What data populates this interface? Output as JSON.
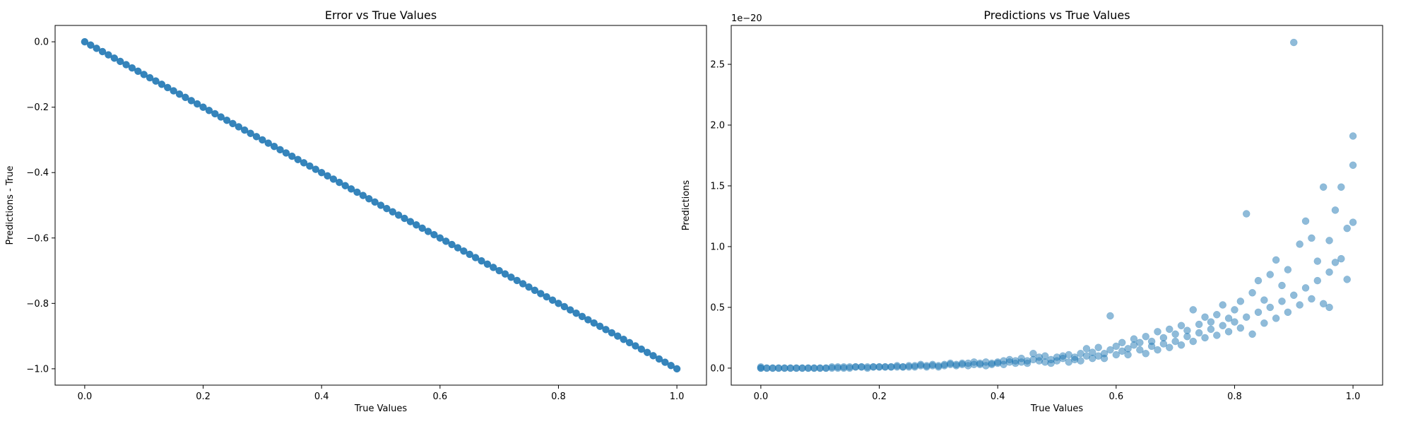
{
  "chart_data": [
    {
      "type": "scatter",
      "title": "Error vs True Values",
      "xlabel": "True Values",
      "ylabel": "Predictions - True",
      "xlim": [
        -0.05,
        1.05
      ],
      "ylim": [
        -1.05,
        0.05
      ],
      "xticks": [
        0.0,
        0.2,
        0.4,
        0.6,
        0.8,
        1.0
      ],
      "xtick_labels": [
        "0.0",
        "0.2",
        "0.4",
        "0.6",
        "0.8",
        "1.0"
      ],
      "yticks": [
        0.0,
        -0.2,
        -0.4,
        -0.6,
        -0.8,
        -1.0
      ],
      "ytick_labels": [
        "0.0",
        "−0.2",
        "−0.4",
        "−0.6",
        "−0.8",
        "−1.0"
      ],
      "color": "#1f77b4",
      "alpha": 0.9,
      "series": [
        {
          "name": "error",
          "rule": "y = -x",
          "x_start": 0.0,
          "x_end": 1.0,
          "count": 101
        }
      ]
    },
    {
      "type": "scatter",
      "title": "Predictions vs True Values",
      "xlabel": "True Values",
      "ylabel": "Predictions",
      "offset_text": "1e−20",
      "xlim": [
        -0.05,
        1.05
      ],
      "ylim": [
        -0.14,
        2.82
      ],
      "xticks": [
        0.0,
        0.2,
        0.4,
        0.6,
        0.8,
        1.0
      ],
      "xtick_labels": [
        "0.0",
        "0.2",
        "0.4",
        "0.6",
        "0.8",
        "1.0"
      ],
      "yticks": [
        0.0,
        0.5,
        1.0,
        1.5,
        2.0,
        2.5
      ],
      "ytick_labels": [
        "0.0",
        "0.5",
        "1.0",
        "1.5",
        "2.0",
        "2.5"
      ],
      "color": "#1f77b4",
      "alpha": 0.5,
      "series": [
        {
          "name": "predictions",
          "points": [
            [
              0.0,
              0.0
            ],
            [
              0.0,
              0.01
            ],
            [
              0.0,
              0.0
            ],
            [
              0.01,
              0.0
            ],
            [
              0.01,
              0.0
            ],
            [
              0.02,
              0.0
            ],
            [
              0.02,
              0.0
            ],
            [
              0.03,
              0.0
            ],
            [
              0.03,
              0.0
            ],
            [
              0.04,
              0.0
            ],
            [
              0.04,
              0.0
            ],
            [
              0.05,
              0.0
            ],
            [
              0.05,
              0.0
            ],
            [
              0.06,
              0.0
            ],
            [
              0.06,
              0.0
            ],
            [
              0.07,
              0.0
            ],
            [
              0.07,
              0.0
            ],
            [
              0.08,
              0.0
            ],
            [
              0.08,
              0.0
            ],
            [
              0.09,
              0.0
            ],
            [
              0.09,
              0.0
            ],
            [
              0.1,
              0.0
            ],
            [
              0.1,
              0.0
            ],
            [
              0.11,
              0.0
            ],
            [
              0.11,
              0.0
            ],
            [
              0.12,
              0.0
            ],
            [
              0.12,
              0.01
            ],
            [
              0.13,
              0.0
            ],
            [
              0.13,
              0.01
            ],
            [
              0.14,
              0.0
            ],
            [
              0.14,
              0.01
            ],
            [
              0.15,
              0.01
            ],
            [
              0.15,
              0.0
            ],
            [
              0.16,
              0.01
            ],
            [
              0.16,
              0.01
            ],
            [
              0.17,
              0.01
            ],
            [
              0.17,
              0.01
            ],
            [
              0.18,
              0.01
            ],
            [
              0.18,
              0.0
            ],
            [
              0.19,
              0.01
            ],
            [
              0.19,
              0.01
            ],
            [
              0.2,
              0.01
            ],
            [
              0.2,
              0.01
            ],
            [
              0.21,
              0.01
            ],
            [
              0.21,
              0.01
            ],
            [
              0.22,
              0.01
            ],
            [
              0.22,
              0.01
            ],
            [
              0.23,
              0.01
            ],
            [
              0.23,
              0.02
            ],
            [
              0.24,
              0.01
            ],
            [
              0.24,
              0.01
            ],
            [
              0.25,
              0.02
            ],
            [
              0.25,
              0.01
            ],
            [
              0.26,
              0.02
            ],
            [
              0.26,
              0.01
            ],
            [
              0.27,
              0.02
            ],
            [
              0.27,
              0.03
            ],
            [
              0.28,
              0.02
            ],
            [
              0.28,
              0.01
            ],
            [
              0.29,
              0.02
            ],
            [
              0.29,
              0.03
            ],
            [
              0.3,
              0.02
            ],
            [
              0.3,
              0.01
            ],
            [
              0.31,
              0.03
            ],
            [
              0.31,
              0.02
            ],
            [
              0.32,
              0.03
            ],
            [
              0.32,
              0.04
            ],
            [
              0.33,
              0.02
            ],
            [
              0.33,
              0.03
            ],
            [
              0.34,
              0.04
            ],
            [
              0.34,
              0.03
            ],
            [
              0.35,
              0.02
            ],
            [
              0.35,
              0.04
            ],
            [
              0.36,
              0.03
            ],
            [
              0.36,
              0.05
            ],
            [
              0.37,
              0.03
            ],
            [
              0.37,
              0.04
            ],
            [
              0.38,
              0.02
            ],
            [
              0.38,
              0.05
            ],
            [
              0.39,
              0.04
            ],
            [
              0.39,
              0.03
            ],
            [
              0.4,
              0.05
            ],
            [
              0.4,
              0.04
            ],
            [
              0.41,
              0.06
            ],
            [
              0.41,
              0.03
            ],
            [
              0.42,
              0.05
            ],
            [
              0.42,
              0.07
            ],
            [
              0.43,
              0.04
            ],
            [
              0.43,
              0.06
            ],
            [
              0.44,
              0.05
            ],
            [
              0.44,
              0.08
            ],
            [
              0.45,
              0.06
            ],
            [
              0.45,
              0.04
            ],
            [
              0.46,
              0.07
            ],
            [
              0.46,
              0.12
            ],
            [
              0.47,
              0.06
            ],
            [
              0.47,
              0.09
            ],
            [
              0.48,
              0.05
            ],
            [
              0.48,
              0.1
            ],
            [
              0.49,
              0.07
            ],
            [
              0.49,
              0.04
            ],
            [
              0.5,
              0.09
            ],
            [
              0.5,
              0.06
            ],
            [
              0.51,
              0.1
            ],
            [
              0.51,
              0.08
            ],
            [
              0.52,
              0.05
            ],
            [
              0.52,
              0.11
            ],
            [
              0.53,
              0.07
            ],
            [
              0.53,
              0.09
            ],
            [
              0.54,
              0.12
            ],
            [
              0.54,
              0.06
            ],
            [
              0.55,
              0.1
            ],
            [
              0.55,
              0.16
            ],
            [
              0.56,
              0.08
            ],
            [
              0.56,
              0.13
            ],
            [
              0.57,
              0.1
            ],
            [
              0.57,
              0.17
            ],
            [
              0.58,
              0.12
            ],
            [
              0.58,
              0.08
            ],
            [
              0.59,
              0.43
            ],
            [
              0.59,
              0.15
            ],
            [
              0.6,
              0.11
            ],
            [
              0.6,
              0.18
            ],
            [
              0.61,
              0.14
            ],
            [
              0.61,
              0.21
            ],
            [
              0.62,
              0.16
            ],
            [
              0.62,
              0.11
            ],
            [
              0.63,
              0.19
            ],
            [
              0.63,
              0.24
            ],
            [
              0.64,
              0.15
            ],
            [
              0.64,
              0.21
            ],
            [
              0.65,
              0.12
            ],
            [
              0.65,
              0.26
            ],
            [
              0.66,
              0.18
            ],
            [
              0.66,
              0.22
            ],
            [
              0.67,
              0.15
            ],
            [
              0.67,
              0.3
            ],
            [
              0.68,
              0.2
            ],
            [
              0.68,
              0.25
            ],
            [
              0.69,
              0.17
            ],
            [
              0.69,
              0.32
            ],
            [
              0.7,
              0.22
            ],
            [
              0.7,
              0.28
            ],
            [
              0.71,
              0.19
            ],
            [
              0.71,
              0.35
            ],
            [
              0.72,
              0.26
            ],
            [
              0.72,
              0.31
            ],
            [
              0.73,
              0.22
            ],
            [
              0.73,
              0.48
            ],
            [
              0.74,
              0.29
            ],
            [
              0.74,
              0.36
            ],
            [
              0.75,
              0.25
            ],
            [
              0.75,
              0.42
            ],
            [
              0.76,
              0.32
            ],
            [
              0.76,
              0.38
            ],
            [
              0.77,
              0.27
            ],
            [
              0.77,
              0.44
            ],
            [
              0.78,
              0.35
            ],
            [
              0.78,
              0.52
            ],
            [
              0.79,
              0.3
            ],
            [
              0.79,
              0.41
            ],
            [
              0.8,
              0.38
            ],
            [
              0.8,
              0.48
            ],
            [
              0.81,
              0.33
            ],
            [
              0.81,
              0.55
            ],
            [
              0.82,
              0.42
            ],
            [
              0.82,
              1.27
            ],
            [
              0.83,
              0.28
            ],
            [
              0.83,
              0.62
            ],
            [
              0.84,
              0.46
            ],
            [
              0.84,
              0.72
            ],
            [
              0.85,
              0.37
            ],
            [
              0.85,
              0.56
            ],
            [
              0.86,
              0.5
            ],
            [
              0.86,
              0.77
            ],
            [
              0.87,
              0.41
            ],
            [
              0.87,
              0.89
            ],
            [
              0.88,
              0.55
            ],
            [
              0.88,
              0.68
            ],
            [
              0.89,
              0.46
            ],
            [
              0.89,
              0.81
            ],
            [
              0.9,
              0.6
            ],
            [
              0.9,
              2.68
            ],
            [
              0.91,
              0.52
            ],
            [
              0.91,
              1.02
            ],
            [
              0.92,
              0.66
            ],
            [
              0.92,
              1.21
            ],
            [
              0.93,
              0.57
            ],
            [
              0.93,
              1.07
            ],
            [
              0.94,
              0.72
            ],
            [
              0.94,
              0.88
            ],
            [
              0.95,
              0.53
            ],
            [
              0.95,
              1.49
            ],
            [
              0.96,
              0.79
            ],
            [
              0.96,
              1.05
            ],
            [
              0.96,
              0.5
            ],
            [
              0.97,
              1.3
            ],
            [
              0.97,
              0.87
            ],
            [
              0.98,
              1.49
            ],
            [
              0.98,
              0.9
            ],
            [
              0.99,
              1.15
            ],
            [
              0.99,
              0.73
            ],
            [
              1.0,
              1.91
            ],
            [
              1.0,
              1.67
            ],
            [
              1.0,
              1.2
            ]
          ]
        }
      ]
    }
  ]
}
